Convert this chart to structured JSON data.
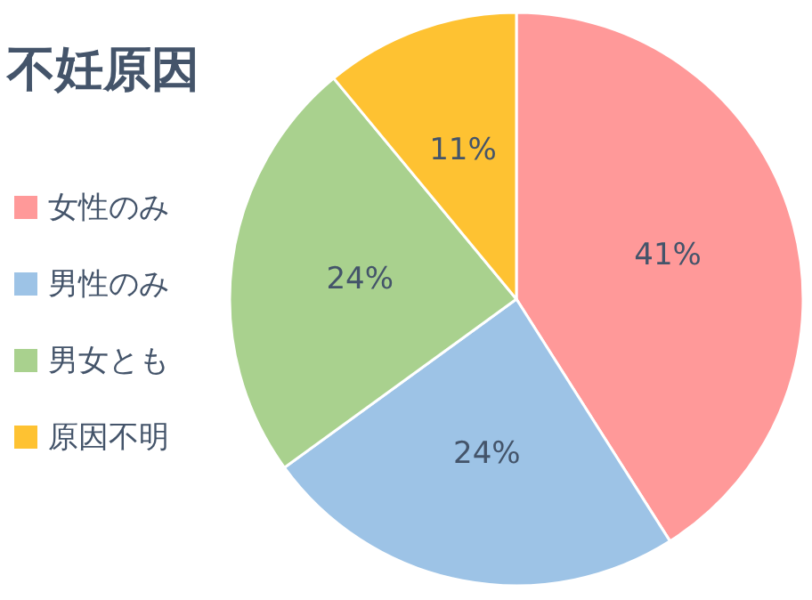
{
  "chart_data": {
    "type": "pie",
    "title": "不妊原因",
    "categories": [
      "女性のみ",
      "男性のみ",
      "男女とも",
      "原因不明"
    ],
    "values": [
      41,
      24,
      24,
      11
    ],
    "colors": [
      "#ff9999",
      "#9dc3e6",
      "#a9d18e",
      "#fec232"
    ],
    "value_labels": [
      "41%",
      "24%",
      "24%",
      "11%"
    ],
    "legend": "left"
  }
}
